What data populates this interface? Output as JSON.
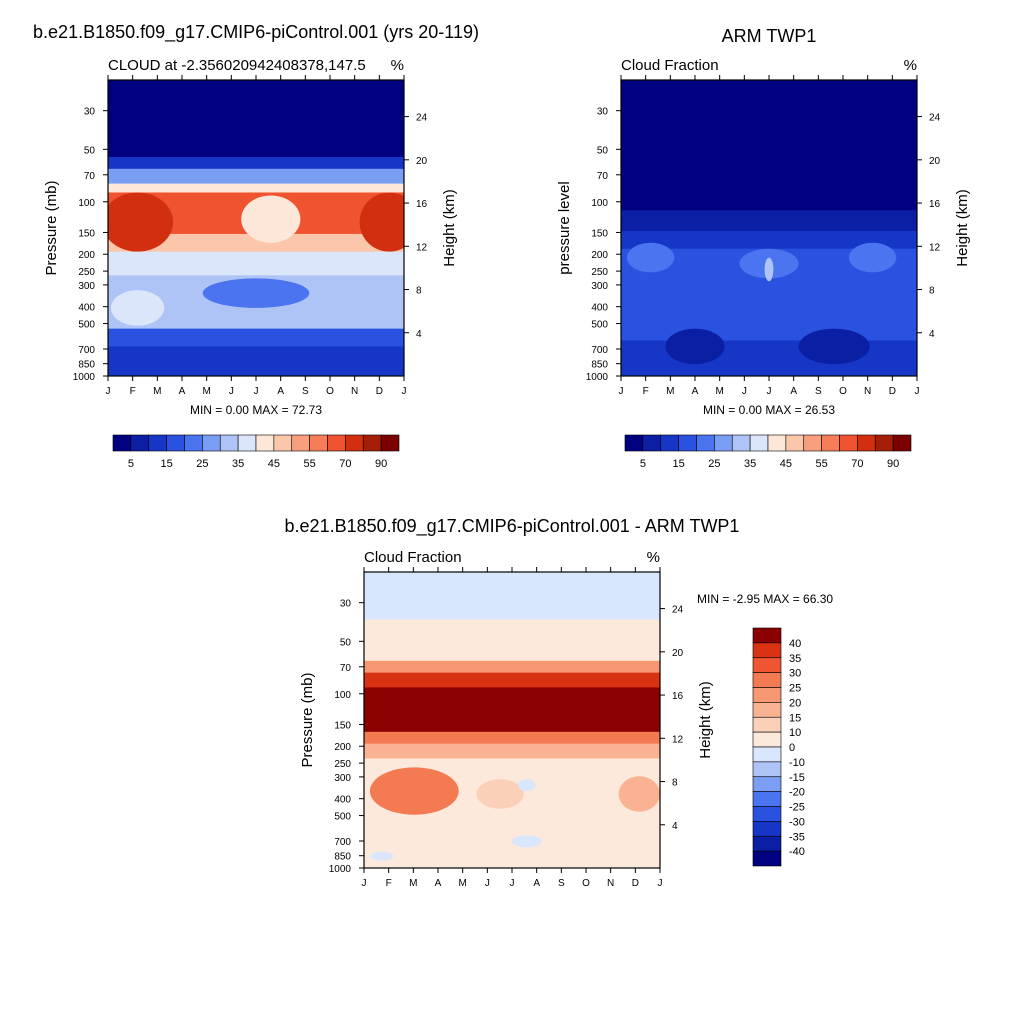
{
  "palettes": {
    "cloud": [
      "#000080",
      "#0a1fa3",
      "#1536c6",
      "#2a52e0",
      "#4a74f0",
      "#7b9ef5",
      "#aec4f7",
      "#dbe6fb",
      "#fde7d8",
      "#fbc6a9",
      "#f8a07e",
      "#f57d58",
      "#f0532f",
      "#d22e10",
      "#a51e08",
      "#7b0000"
    ],
    "diff": [
      "#000080",
      "#0a1fa3",
      "#1536c6",
      "#2a52e0",
      "#4a74f0",
      "#7b9ef5",
      "#aec4f7",
      "#d8e7fd",
      "#fde9dc",
      "#fbd0b8",
      "#f9b393",
      "#f79873",
      "#f47a52",
      "#ee5530",
      "#d83212",
      "#8b0000"
    ]
  },
  "chart_data": [
    {
      "type": "heatmap",
      "title": "b.e21.B1850.f09_g17.CMIP6-piControl.001 (yrs 20-119)",
      "left_string": "CLOUD at -2.356020942408378,147.5",
      "right_string": "%",
      "ylabel": "Pressure (mb)",
      "ylabel_right": "Height (km)",
      "months": [
        "J",
        "F",
        "M",
        "A",
        "M",
        "J",
        "J",
        "A",
        "S",
        "O",
        "N",
        "D",
        "J"
      ],
      "pressure_ticks": [
        "30",
        "50",
        "70",
        "100",
        "150",
        "200",
        "250",
        "300",
        "400",
        "500",
        "700",
        "850",
        "1000"
      ],
      "height_ticks": [
        "24",
        "20",
        "16",
        "12",
        "8",
        "4"
      ],
      "stats": "MIN =   0.00 MAX =  72.73",
      "colorbar_labels": [
        "5",
        "15",
        "25",
        "35",
        "45",
        "55",
        "70",
        "90"
      ],
      "bands": [
        {
          "from": 0.0,
          "to": 0.26,
          "level": 0
        },
        {
          "from": 0.26,
          "to": 0.3,
          "level": 2
        },
        {
          "from": 0.3,
          "to": 0.35,
          "level": 5
        },
        {
          "from": 0.35,
          "to": 0.38,
          "level": 8
        },
        {
          "from": 0.38,
          "to": 0.52,
          "level": 12
        },
        {
          "from": 0.52,
          "to": 0.58,
          "level": 9
        },
        {
          "from": 0.58,
          "to": 0.66,
          "level": 7
        },
        {
          "from": 0.66,
          "to": 0.72,
          "level": 6
        },
        {
          "from": 0.72,
          "to": 0.84,
          "level": 6
        },
        {
          "from": 0.84,
          "to": 0.9,
          "level": 3
        },
        {
          "from": 0.9,
          "to": 1.0,
          "level": 2
        }
      ],
      "blobs": [
        {
          "cx": 0.1,
          "cy": 0.48,
          "rx": 0.12,
          "ry": 0.1,
          "level": 13
        },
        {
          "cx": 0.95,
          "cy": 0.48,
          "rx": 0.1,
          "ry": 0.1,
          "level": 13
        },
        {
          "cx": 0.55,
          "cy": 0.47,
          "rx": 0.1,
          "ry": 0.08,
          "level": 8
        },
        {
          "cx": 0.1,
          "cy": 0.77,
          "rx": 0.09,
          "ry": 0.06,
          "level": 7
        },
        {
          "cx": 0.5,
          "cy": 0.72,
          "rx": 0.18,
          "ry": 0.05,
          "level": 4
        },
        {
          "cx": 0.47,
          "cy": 0.94,
          "rx": 0.05,
          "ry": 0.02,
          "level": 2
        }
      ]
    },
    {
      "type": "heatmap",
      "title": "ARM TWP1",
      "left_string": "Cloud Fraction",
      "right_string": "%",
      "ylabel": "pressure level",
      "ylabel_right": "Height (km)",
      "months": [
        "J",
        "F",
        "M",
        "A",
        "M",
        "J",
        "J",
        "A",
        "S",
        "O",
        "N",
        "D",
        "J"
      ],
      "pressure_ticks": [
        "30",
        "50",
        "70",
        "100",
        "150",
        "200",
        "250",
        "300",
        "400",
        "500",
        "700",
        "850",
        "1000"
      ],
      "height_ticks": [
        "24",
        "20",
        "16",
        "12",
        "8",
        "4"
      ],
      "stats": "MIN =   0.00 MAX =  26.53",
      "colorbar_labels": [
        "5",
        "15",
        "25",
        "35",
        "45",
        "55",
        "70",
        "90"
      ],
      "bands": [
        {
          "from": 0.0,
          "to": 0.44,
          "level": 0
        },
        {
          "from": 0.44,
          "to": 0.51,
          "level": 1
        },
        {
          "from": 0.51,
          "to": 0.57,
          "level": 2
        },
        {
          "from": 0.57,
          "to": 0.88,
          "level": 3
        },
        {
          "from": 0.88,
          "to": 1.0,
          "level": 2
        }
      ],
      "blobs": [
        {
          "cx": 0.1,
          "cy": 0.6,
          "rx": 0.08,
          "ry": 0.05,
          "level": 4
        },
        {
          "cx": 0.5,
          "cy": 0.62,
          "rx": 0.1,
          "ry": 0.05,
          "level": 4
        },
        {
          "cx": 0.85,
          "cy": 0.6,
          "rx": 0.08,
          "ry": 0.05,
          "level": 4
        },
        {
          "cx": 0.5,
          "cy": 0.64,
          "rx": 0.015,
          "ry": 0.04,
          "level": 6
        },
        {
          "cx": 0.25,
          "cy": 0.9,
          "rx": 0.1,
          "ry": 0.06,
          "level": 1
        },
        {
          "cx": 0.72,
          "cy": 0.9,
          "rx": 0.12,
          "ry": 0.06,
          "level": 1
        }
      ]
    },
    {
      "type": "heatmap",
      "title": "b.e21.B1850.f09_g17.CMIP6-piControl.001 - ARM TWP1",
      "left_string": "Cloud Fraction",
      "right_string": "%",
      "ylabel": "Pressure (mb)",
      "ylabel_right": "Height (km)",
      "months": [
        "J",
        "F",
        "M",
        "A",
        "M",
        "J",
        "J",
        "A",
        "S",
        "O",
        "N",
        "D",
        "J"
      ],
      "pressure_ticks": [
        "30",
        "50",
        "70",
        "100",
        "150",
        "200",
        "250",
        "300",
        "400",
        "500",
        "700",
        "850",
        "1000"
      ],
      "height_ticks": [
        "24",
        "20",
        "16",
        "12",
        "8",
        "4"
      ],
      "stats": "MIN =  -2.95 MAX =  66.30",
      "colorbar_labels": [
        "40",
        "35",
        "30",
        "25",
        "20",
        "15",
        "10",
        "0",
        "-10",
        "-15",
        "-20",
        "-25",
        "-30",
        "-35",
        "-40"
      ],
      "bands": [
        {
          "from": 0.0,
          "to": 0.16,
          "level": 7
        },
        {
          "from": 0.16,
          "to": 0.3,
          "level": 8
        },
        {
          "from": 0.3,
          "to": 0.34,
          "level": 11
        },
        {
          "from": 0.34,
          "to": 0.39,
          "level": 14
        },
        {
          "from": 0.39,
          "to": 0.54,
          "level": 15
        },
        {
          "from": 0.54,
          "to": 0.58,
          "level": 12
        },
        {
          "from": 0.58,
          "to": 0.63,
          "level": 10
        },
        {
          "from": 0.63,
          "to": 1.0,
          "level": 8
        }
      ],
      "blobs": [
        {
          "cx": 0.17,
          "cy": 0.74,
          "rx": 0.15,
          "ry": 0.08,
          "level": 12
        },
        {
          "cx": 0.46,
          "cy": 0.75,
          "rx": 0.08,
          "ry": 0.05,
          "level": 9
        },
        {
          "cx": 0.93,
          "cy": 0.75,
          "rx": 0.07,
          "ry": 0.06,
          "level": 10
        },
        {
          "cx": 0.55,
          "cy": 0.72,
          "rx": 0.03,
          "ry": 0.02,
          "level": 7
        },
        {
          "cx": 0.55,
          "cy": 0.91,
          "rx": 0.05,
          "ry": 0.02,
          "level": 7
        },
        {
          "cx": 0.06,
          "cy": 0.96,
          "rx": 0.04,
          "ry": 0.015,
          "level": 7
        }
      ]
    }
  ]
}
